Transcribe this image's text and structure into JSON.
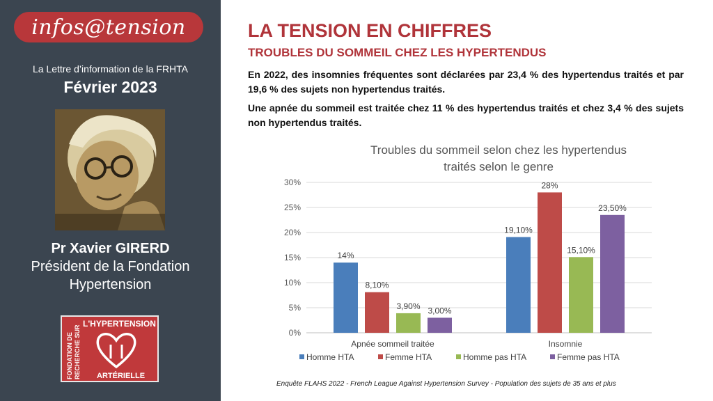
{
  "sidebar": {
    "logo_text": "infos@tension",
    "newsletter_label": "La Lettre d’information de la FRHTA",
    "issue_date": "Février 2023",
    "author_name": "Pr Xavier GIRERD",
    "author_role_line1": "Président de la Fondation",
    "author_role_line2": "Hypertension",
    "foundation_logo": {
      "vertical_line1": "FONDATION DE",
      "vertical_line2": "RECHERCHE SUR",
      "top_text": "L'HYPERTENSION",
      "bottom_text": "ARTÉRIELLE"
    }
  },
  "main": {
    "title": "LA TENSION EN CHIFFRES",
    "subtitle": "TROUBLES DU SOMMEIL CHEZ LES HYPERTENDUS",
    "paragraph1": "En 2022, des insomnies fréquentes sont déclarées par 23,4 % des hypertendus traités et par 19,6 % des sujets non hypertendus traités.",
    "paragraph2": "Une apnée du sommeil est traitée chez 11 % des hypertendus traités et chez 3,4 % des sujets non hypertendus traités.",
    "footnote": "Enquête FLAHS 2022 - French League Against Hypertension Survey - Population des sujets de 35 ans et plus"
  },
  "chart_data": {
    "type": "bar",
    "title_line1": "Troubles du sommeil selon chez les hypertendus",
    "title_line2": "traités selon le genre",
    "categories": [
      "Apnée sommeil traitée",
      "Insomnie"
    ],
    "ylim": [
      0,
      30
    ],
    "yticks": [
      "0%",
      "5%",
      "10%",
      "15%",
      "20%",
      "25%",
      "30%"
    ],
    "ytick_values": [
      0,
      5,
      10,
      15,
      20,
      25,
      30
    ],
    "grid": true,
    "legend_position": "bottom",
    "series": [
      {
        "name": "Homme HTA",
        "color": "#4a7ebb",
        "values": [
          14,
          19.1
        ],
        "labels": [
          "14%",
          "19,10%"
        ]
      },
      {
        "name": "Femme  HTA",
        "color": "#be4b48",
        "values": [
          8.1,
          28
        ],
        "labels": [
          "8,10%",
          "28%"
        ]
      },
      {
        "name": "Homme pas HTA",
        "color": "#98b954",
        "values": [
          3.9,
          15.1
        ],
        "labels": [
          "3,90%",
          "15,10%"
        ]
      },
      {
        "name": "Femme pas HTA",
        "color": "#7d60a0",
        "values": [
          3.0,
          23.5
        ],
        "labels": [
          "3,00%",
          "23,50%"
        ]
      }
    ]
  }
}
